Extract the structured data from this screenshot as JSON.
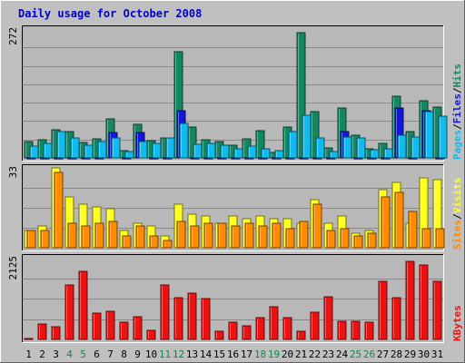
{
  "title": "Daily usage for October 2008",
  "colors": {
    "frame_bg": "#c0c0c0",
    "panel_bg": "#b8b8b8",
    "title_text": "#0000cc",
    "axis_text": "#000000",
    "weekend_text": "#118844",
    "hits": "#138860",
    "files": "#1515dd",
    "pages": "#11bbee",
    "visits": "#ffff22",
    "sites": "#ff8c00",
    "kbytes": "#ee1111"
  },
  "chart_data": [
    {
      "type": "bar",
      "panel": "top",
      "max_label": "272",
      "ylim": [
        0,
        272
      ],
      "series_labels": [
        {
          "name": "Pages",
          "color_key": "pages"
        },
        {
          "name": "Files",
          "color_key": "files"
        },
        {
          "name": "Hits",
          "color_key": "hits"
        }
      ],
      "separators": [
        "/",
        "/"
      ],
      "series": [
        {
          "name": "Hits",
          "color_key": "hits",
          "values": [
            34,
            38,
            59,
            56,
            33,
            40,
            82,
            15,
            70,
            37,
            43,
            225,
            66,
            38,
            34,
            26,
            40,
            58,
            12,
            66,
            265,
            98,
            22,
            105,
            48,
            20,
            30,
            130,
            56,
            120,
            108
          ]
        },
        {
          "name": "Files",
          "color_key": "files",
          "values": [
            0,
            0,
            0,
            0,
            0,
            0,
            54,
            0,
            54,
            0,
            0,
            100,
            0,
            0,
            0,
            0,
            0,
            0,
            0,
            0,
            0,
            0,
            0,
            55,
            0,
            0,
            0,
            105,
            0,
            100,
            0
          ]
        },
        {
          "name": "Pages",
          "color_key": "pages",
          "values": [
            25,
            30,
            55,
            42,
            26,
            35,
            42,
            13,
            35,
            31,
            42,
            72,
            28,
            30,
            27,
            20,
            25,
            20,
            15,
            55,
            90,
            42,
            14,
            45,
            43,
            18,
            20,
            48,
            45,
            98,
            88
          ]
        }
      ]
    },
    {
      "type": "bar",
      "panel": "middle",
      "max_label": "33",
      "ylim": [
        0,
        33
      ],
      "series_labels": [
        {
          "name": "Sites",
          "color_key": "sites"
        },
        {
          "name": "Visits",
          "color_key": "visits"
        }
      ],
      "separators": [
        "/"
      ],
      "series": [
        {
          "name": "Visits",
          "color_key": "visits",
          "values": [
            7,
            9,
            33,
            21,
            18,
            17,
            16,
            7,
            10,
            9,
            5,
            18,
            14,
            13,
            10,
            13,
            12,
            13,
            12,
            12,
            10,
            20,
            10,
            13,
            6,
            7,
            24,
            27,
            10,
            29,
            28
          ]
        },
        {
          "name": "Sites",
          "color_key": "sites",
          "values": [
            7,
            7,
            31,
            10,
            9,
            10,
            11,
            5,
            9,
            5,
            3,
            11,
            9,
            10,
            10,
            9,
            10,
            9,
            10,
            8,
            11,
            18,
            7,
            8,
            5,
            6,
            21,
            23,
            15,
            8,
            8
          ]
        }
      ]
    },
    {
      "type": "bar",
      "panel": "bottom",
      "max_label": "2125",
      "ylim": [
        0,
        2125
      ],
      "series_labels": [
        {
          "name": "KBytes",
          "color_key": "kbytes"
        }
      ],
      "separators": [],
      "series": [
        {
          "name": "KBytes",
          "color_key": "kbytes",
          "values": [
            20,
            400,
            340,
            1420,
            1760,
            680,
            740,
            460,
            580,
            240,
            1420,
            1080,
            1200,
            1060,
            220,
            440,
            350,
            560,
            860,
            560,
            220,
            700,
            1100,
            480,
            470,
            440,
            1520,
            1080,
            2030,
            1940,
            1520
          ]
        }
      ]
    }
  ],
  "x_labels": [
    "1",
    "2",
    "3",
    "4",
    "5",
    "6",
    "7",
    "8",
    "9",
    "10",
    "11",
    "12",
    "13",
    "14",
    "15",
    "16",
    "17",
    "18",
    "19",
    "20",
    "21",
    "22",
    "23",
    "24",
    "25",
    "26",
    "27",
    "28",
    "29",
    "30",
    "31"
  ],
  "weekend_days": [
    4,
    5,
    11,
    12,
    18,
    19,
    25,
    26
  ]
}
